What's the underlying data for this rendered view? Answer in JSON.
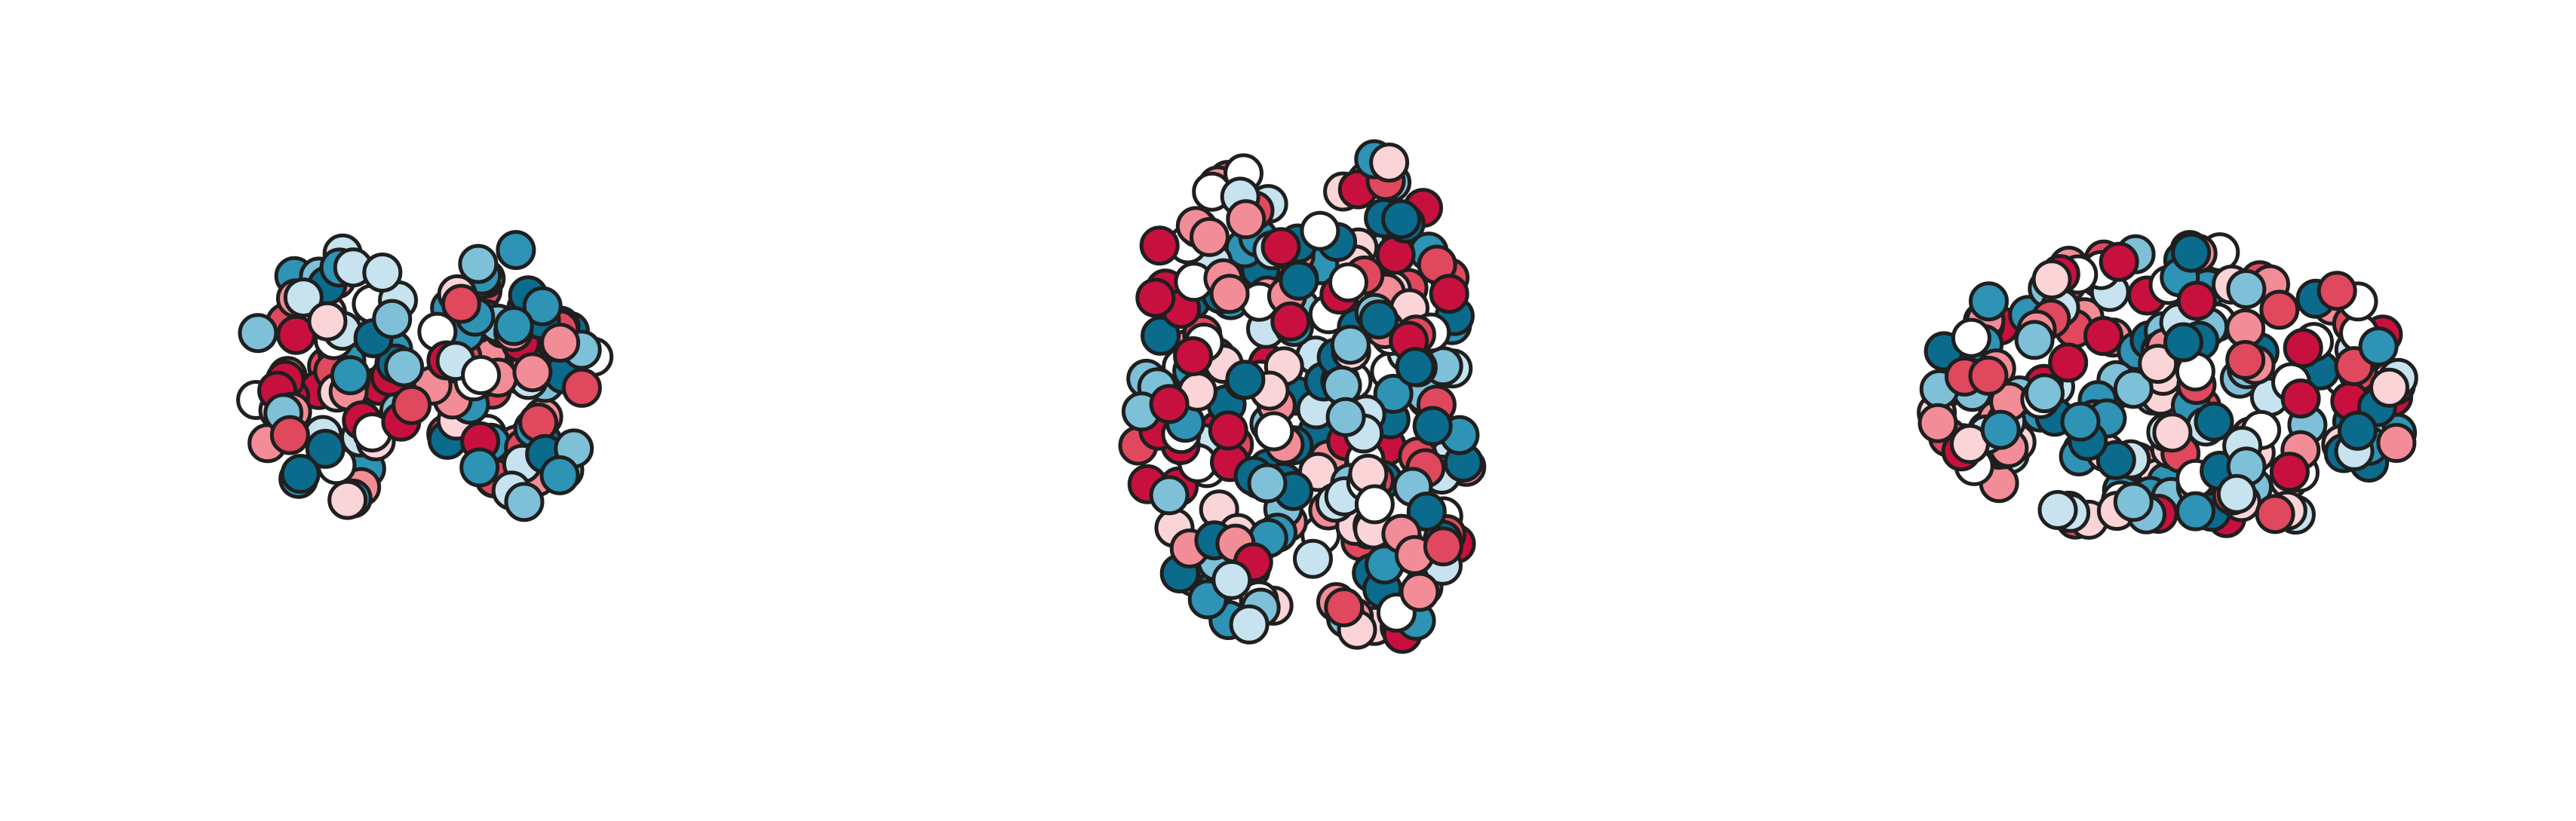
{
  "palette": [
    "#0b6b8c",
    "#2e93b4",
    "#7ec0d8",
    "#c6e3ef",
    "#ffffff",
    "#fbd4d8",
    "#f28d98",
    "#e0485e",
    "#c8103e"
  ]
}
